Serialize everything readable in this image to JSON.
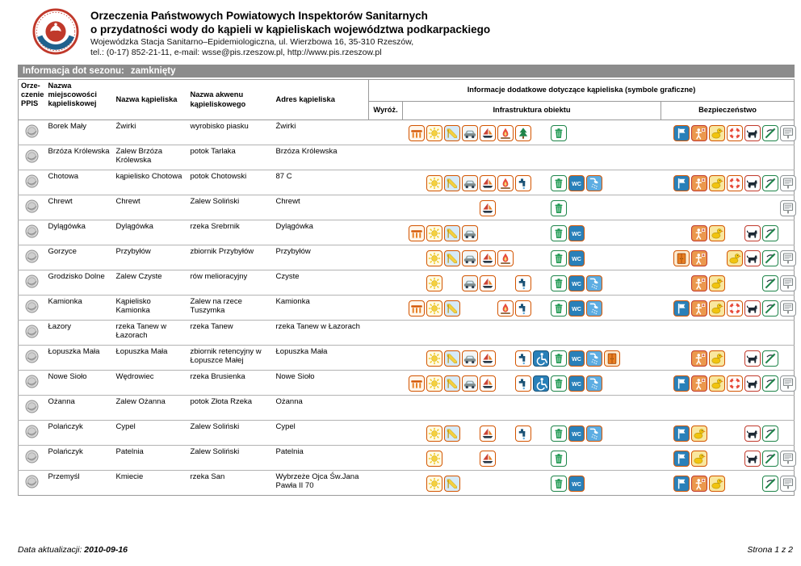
{
  "header": {
    "title1": "Orzeczenia Państwowych Powiatowych Inspektorów Sanitarnych",
    "title2": "o przydatności wody do kąpieli w kąpieliskach województwa podkarpackiego",
    "org_line1": "Wojewódzka Stacja Sanitarno–Epidemiologiczna, ul. Wierzbowa 16, 35-310 Rzeszów,",
    "org_line2": "tel.: (0-17) 852-21-11, e-mail: wsse@pis.rzeszow.pl, http://www.pis.rzeszow.pl"
  },
  "season_bar": {
    "label": "Informacja dot sezonu:",
    "value": "zamknięty"
  },
  "colors": {
    "season_bar_bg": "#8c8c8c",
    "logo_red": "#c0392b",
    "logo_blue": "#1f618d",
    "icon_border": "#d35400"
  },
  "table": {
    "headers": {
      "ppis": "Orze- czenie PPIS",
      "miejscowosc": "Nazwa miejscowości kąpieliskowej",
      "kapielisko": "Nazwa kąpieliska",
      "akwen": "Nazwa akwenu kąpieliskowego",
      "adres": "Adres kąpieliska",
      "dodatkowe": "Informacje dodatkowe dotyczące kąpieliska (symbole graficzne)",
      "wyroz": "Wyróż.",
      "infra": "Infrastruktura obiektu",
      "bezp": "Bezpieczeństwo"
    },
    "rows": [
      {
        "miejscowosc": "Borek Mały",
        "kapielisko": "Żwirki",
        "akwen": "wyrobisko piasku",
        "adres": "Żwirki",
        "wyroz": [],
        "infra": [
          "pier",
          "sun",
          "slide",
          "car",
          "sail",
          "fire",
          "tree",
          "gap",
          "bin"
        ],
        "bezp": [
          "flag",
          "lifeguard",
          "duck",
          "lifebuoy",
          "dog",
          "nojump",
          "board"
        ]
      },
      {
        "miejscowosc": "Brzóza Królewska",
        "kapielisko": "Zalew Brzóza Królewska",
        "akwen": "potok Tarlaka",
        "adres": "Brzóza Królewska",
        "wyroz": [],
        "infra": [],
        "bezp": []
      },
      {
        "miejscowosc": "Chotowa",
        "kapielisko": "kąpielisko Chotowa",
        "akwen": "potok Chotowski",
        "adres": "87 C",
        "wyroz": [],
        "infra": [
          "gap",
          "sun",
          "slide",
          "car",
          "sail",
          "fire",
          "tap",
          "gap",
          "bin",
          "wc",
          "shower"
        ],
        "bezp": [
          "flag",
          "lifeguard",
          "duck",
          "lifebuoy",
          "dog",
          "nojump",
          "board"
        ]
      },
      {
        "miejscowosc": "Chrewt",
        "kapielisko": "Chrewt",
        "akwen": "Zalew Soliński",
        "adres": "Chrewt",
        "wyroz": [],
        "infra": [
          "gap",
          "gap",
          "gap",
          "gap",
          "sail",
          "gap",
          "gap",
          "gap",
          "bin"
        ],
        "bezp": [
          "gap",
          "gap",
          "gap",
          "gap",
          "gap",
          "gap",
          "board"
        ]
      },
      {
        "miejscowosc": "Dylągówka",
        "kapielisko": "Dylągówka",
        "akwen": "rzeka Srebrnik",
        "adres": "Dylągówka",
        "wyroz": [],
        "infra": [
          "pier",
          "sun",
          "slide",
          "car",
          "gap",
          "gap",
          "gap",
          "gap",
          "bin",
          "wc"
        ],
        "bezp": [
          "gap",
          "lifeguard",
          "duck",
          "gap",
          "dog",
          "nojump"
        ]
      },
      {
        "miejscowosc": "Gorzyce",
        "kapielisko": "Przybyłów",
        "akwen": "zbiornik Przybyłów",
        "adres": "Przybyłów",
        "wyroz": [],
        "infra": [
          "gap",
          "sun",
          "slide",
          "car",
          "sail",
          "fire",
          "gap",
          "gap",
          "bin",
          "wc"
        ],
        "bezp": [
          "cabinet",
          "lifeguard",
          "gap",
          "duck",
          "dog",
          "nojump",
          "board"
        ]
      },
      {
        "miejscowosc": "Grodzisko Dolne",
        "kapielisko": "Zalew Czyste",
        "akwen": "rów melioracyjny",
        "adres": "Czyste",
        "wyroz": [],
        "infra": [
          "gap",
          "sun",
          "gap",
          "car",
          "sail",
          "gap",
          "tap",
          "gap",
          "bin",
          "wc",
          "shower"
        ],
        "bezp": [
          "gap",
          "lifeguard",
          "duck",
          "gap",
          "gap",
          "nojump",
          "board"
        ]
      },
      {
        "miejscowosc": "Kamionka",
        "kapielisko": "Kąpielisko Kamionka",
        "akwen": "Zalew na rzece Tuszymka",
        "adres": "Kamionka",
        "wyroz": [],
        "infra": [
          "pier",
          "sun",
          "slide",
          "gap",
          "gap",
          "fire",
          "tap",
          "gap",
          "bin",
          "wc",
          "shower"
        ],
        "bezp": [
          "flag",
          "lifeguard",
          "duck",
          "lifebuoy",
          "dog",
          "nojump",
          "board"
        ]
      },
      {
        "miejscowosc": "Łazory",
        "kapielisko": "rzeka Tanew w Łazorach",
        "akwen": "rzeka Tanew",
        "adres": "rzeka Tanew w Łazorach",
        "wyroz": [],
        "infra": [],
        "bezp": []
      },
      {
        "miejscowosc": "Łopuszka Mała",
        "kapielisko": "Łopuszka Mała",
        "akwen": "zbiornik retencyjny w Łopuszce Małej",
        "adres": "Łopuszka Mała",
        "wyroz": [],
        "infra": [
          "gap",
          "sun",
          "slide",
          "car",
          "sail",
          "gap",
          "tap",
          "wheelchair",
          "bin",
          "wc",
          "shower",
          "cabinet"
        ],
        "bezp": [
          "gap",
          "lifeguard",
          "duck",
          "gap",
          "dog",
          "nojump"
        ]
      },
      {
        "miejscowosc": "Nowe Sioło",
        "kapielisko": "Wędrowiec",
        "akwen": "rzeka Brusienka",
        "adres": "Nowe Sioło",
        "wyroz": [],
        "infra": [
          "pier",
          "sun",
          "slide",
          "car",
          "sail",
          "gap",
          "tap",
          "wheelchair",
          "bin",
          "wc",
          "shower"
        ],
        "bezp": [
          "flag",
          "lifeguard",
          "duck",
          "lifebuoy",
          "dog",
          "nojump",
          "board"
        ]
      },
      {
        "miejscowosc": "Ożanna",
        "kapielisko": "Zalew Ożanna",
        "akwen": "potok Złota Rzeka",
        "adres": "Ożanna",
        "wyroz": [],
        "infra": [],
        "bezp": []
      },
      {
        "miejscowosc": "Polańczyk",
        "kapielisko": "Cypel",
        "akwen": "Zalew Soliński",
        "adres": "Cypel",
        "wyroz": [],
        "infra": [
          "gap",
          "sun",
          "slide",
          "gap",
          "sail",
          "gap",
          "tap",
          "gap",
          "bin",
          "wc",
          "shower"
        ],
        "bezp": [
          "flag",
          "duck",
          "gap",
          "gap",
          "dog",
          "nojump"
        ]
      },
      {
        "miejscowosc": "Polańczyk",
        "kapielisko": "Patelnia",
        "akwen": "Zalew Soliński",
        "adres": "Patelnia",
        "wyroz": [],
        "infra": [
          "gap",
          "sun",
          "gap",
          "gap",
          "sail",
          "gap",
          "gap",
          "gap",
          "bin"
        ],
        "bezp": [
          "flag",
          "duck",
          "gap",
          "gap",
          "dog",
          "nojump",
          "board"
        ]
      },
      {
        "miejscowosc": "Przemyśl",
        "kapielisko": "Kmiecie",
        "akwen": "rzeka San",
        "adres": "Wybrzeże Ojca Św.Jana Pawła II 70",
        "wyroz": [],
        "infra": [
          "gap",
          "sun",
          "slide",
          "gap",
          "gap",
          "gap",
          "gap",
          "gap",
          "bin",
          "wc"
        ],
        "bezp": [
          "flag",
          "lifeguard",
          "duck",
          "gap",
          "gap",
          "nojump",
          "board"
        ]
      }
    ]
  },
  "icon_defs": {
    "pier": {
      "label": "pier",
      "bg": "#fff7ec",
      "border": "#d35400"
    },
    "sun": {
      "label": "sunbathing-beach",
      "bg": "#fffbe6",
      "border": "#d35400"
    },
    "slide": {
      "label": "water-slide",
      "bg": "#d6eaf8",
      "border": "#d35400"
    },
    "car": {
      "label": "parking",
      "bg": "#f4f6f6",
      "border": "#d35400"
    },
    "sail": {
      "label": "boats",
      "bg": "#ffffff",
      "border": "#d35400"
    },
    "fire": {
      "label": "campfire-site",
      "bg": "#ffffff",
      "border": "#d35400"
    },
    "tree": {
      "label": "green-area",
      "bg": "#ffffff",
      "border": "#d35400"
    },
    "tap": {
      "label": "drinking-water",
      "bg": "#ffffff",
      "border": "#d35400"
    },
    "wheelchair": {
      "label": "disabled-access",
      "bg": "#2980b9",
      "border": "#1a5276"
    },
    "bin": {
      "label": "waste-bin",
      "bg": "#ffffff",
      "border": "#1e8449"
    },
    "wc": {
      "label": "toilets",
      "bg": "#2980b9",
      "border": "#d35400"
    },
    "shower": {
      "label": "shower",
      "bg": "#5dade2",
      "border": "#d35400"
    },
    "cabinet": {
      "label": "changing-cabin",
      "bg": "#fdebd0",
      "border": "#d35400"
    },
    "flag": {
      "label": "guarded-bathing-flag",
      "bg": "#2980b9",
      "border": "#d35400"
    },
    "lifeguard": {
      "label": "lifeguard",
      "bg": "#eb984e",
      "border": "#c0392b"
    },
    "duck": {
      "label": "children-paddling-area",
      "bg": "#f9e79f",
      "border": "#d35400"
    },
    "lifebuoy": {
      "label": "rescue-equipment",
      "bg": "#ffffff",
      "border": "#d35400"
    },
    "dog": {
      "label": "no-dogs",
      "bg": "#ffffff",
      "border": "#c0392b"
    },
    "nojump": {
      "label": "no-diving",
      "bg": "#ffffff",
      "border": "#1e8449"
    },
    "board": {
      "label": "information-board",
      "bg": "#fdfefe",
      "border": "#909497"
    }
  },
  "footer": {
    "updated_label": "Data aktualizacji:",
    "updated_value": "2010-09-16",
    "page": "Strona 1 z 2"
  }
}
